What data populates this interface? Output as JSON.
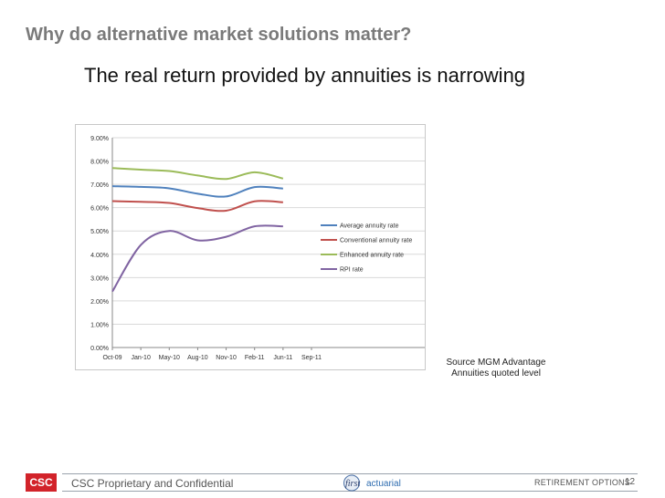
{
  "slide": {
    "title": "Why do alternative market solutions matter?",
    "subtitle": "The real return provided by annuities is narrowing",
    "source_line1": "Source MGM Advantage",
    "source_line2": "Annuities quoted level"
  },
  "footer": {
    "logo": "CSC",
    "text": "CSC Proprietary and Confidential",
    "partner_logo": "first actuarial",
    "section": "RETIREMENT OPTIONS",
    "page": "12"
  },
  "colors": {
    "title": "#7a7a7a",
    "brand_red": "#d2232a",
    "average": "#4f81bd",
    "conventional": "#c0504d",
    "enhanced": "#9bbb59",
    "rpi": "#8064a2"
  },
  "chart_data": {
    "type": "line",
    "title": "",
    "xlabel": "",
    "ylabel": "",
    "categories": [
      "Oct-09",
      "Jan-10",
      "May-10",
      "Aug-10",
      "Nov-10",
      "Feb-11",
      "Jun-11",
      "Sep-11"
    ],
    "y_ticks": [
      "0.00%",
      "1.00%",
      "2.00%",
      "3.00%",
      "4.00%",
      "5.00%",
      "6.00%",
      "7.00%",
      "8.00%",
      "9.00%"
    ],
    "ylim": [
      0,
      9
    ],
    "grid": true,
    "legend_position": "right",
    "series": [
      {
        "name": "Average annuity rate",
        "color": "#4f81bd",
        "values": [
          6.92,
          6.89,
          6.83,
          6.6,
          6.48,
          6.88,
          6.82,
          null
        ]
      },
      {
        "name": "Conventional annuity rate",
        "color": "#c0504d",
        "values": [
          6.28,
          6.25,
          6.2,
          5.98,
          5.87,
          6.27,
          6.23,
          null
        ]
      },
      {
        "name": "Enhanced annuity rate",
        "color": "#9bbb59",
        "values": [
          7.7,
          7.63,
          7.57,
          7.38,
          7.23,
          7.52,
          7.25,
          null
        ]
      },
      {
        "name": "RPI rate",
        "color": "#8064a2",
        "values": [
          2.4,
          4.4,
          5.0,
          4.6,
          4.75,
          5.2,
          5.2,
          null
        ]
      }
    ]
  }
}
